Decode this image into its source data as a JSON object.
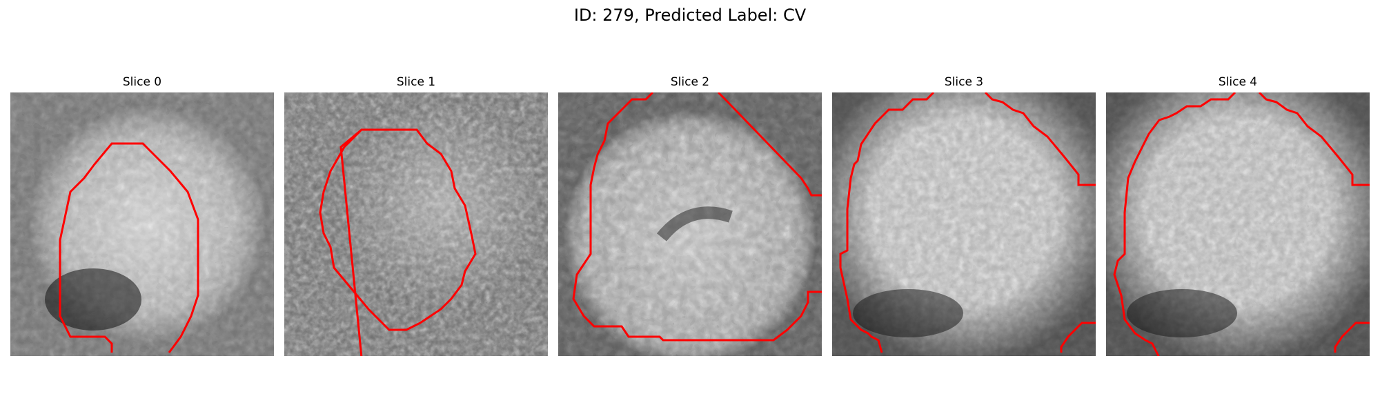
{
  "figure": {
    "title": "ID: 279, Predicted Label: CV"
  },
  "panels": [
    {
      "title": "Slice 0"
    },
    {
      "title": "Slice 1"
    },
    {
      "title": "Slice 2"
    },
    {
      "title": "Slice 3"
    },
    {
      "title": "Slice 4"
    }
  ],
  "colors": {
    "contour": "#ff0000",
    "background": "#ffffff"
  }
}
